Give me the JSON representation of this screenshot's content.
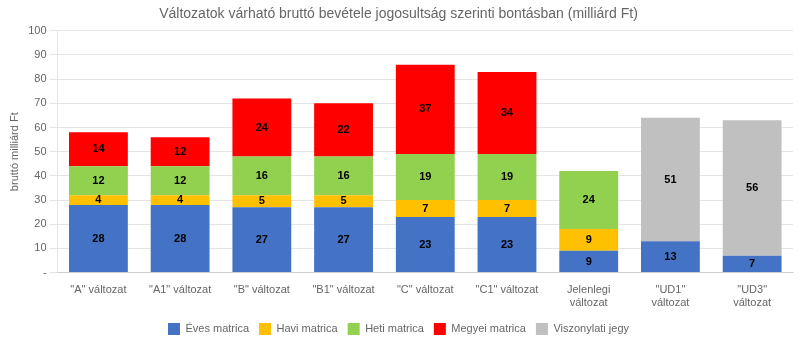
{
  "chart_data": {
    "type": "bar",
    "title": "Változatok várható bruttó bevétele jogosultság szerinti bontásban (milliárd Ft)",
    "ylabel": "bruttó milliárd Ft",
    "categories": [
      "\"A\" változat",
      "\"A1\" változat",
      "\"B\" változat",
      "\"B1\" változat",
      "\"C\" változat",
      "\"C1\" változat",
      "Jelenlegi\nváltozat",
      "\"UD1\"\nváltozat",
      "\"UD3\"\nváltozat"
    ],
    "series": [
      {
        "name": "Éves matrica",
        "color": "#4472C4",
        "values": [
          28,
          28,
          27,
          27,
          23,
          23,
          9,
          13,
          7
        ]
      },
      {
        "name": "Havi matrica",
        "color": "#FFC000",
        "values": [
          4,
          4,
          5,
          5,
          7,
          7,
          9,
          0,
          0
        ]
      },
      {
        "name": "Heti matrica",
        "color": "#92D050",
        "values": [
          12,
          12,
          16,
          16,
          19,
          19,
          24,
          0,
          0
        ]
      },
      {
        "name": "Megyei matrica",
        "color": "#FF0000",
        "values": [
          14,
          12,
          24,
          22,
          37,
          34,
          0,
          0,
          0
        ]
      },
      {
        "name": "Viszonylati jegy",
        "color": "#C0C0C0",
        "values": [
          0,
          0,
          0,
          0,
          0,
          0,
          0,
          51,
          56
        ]
      }
    ],
    "stacked": true,
    "data_labels": true,
    "ylim": [
      0,
      100
    ],
    "yticks": [
      {
        "value": 0,
        "label": "-"
      },
      10,
      20,
      30,
      40,
      50,
      60,
      70,
      80,
      90,
      100
    ],
    "grid": true,
    "legend": "bottom"
  }
}
